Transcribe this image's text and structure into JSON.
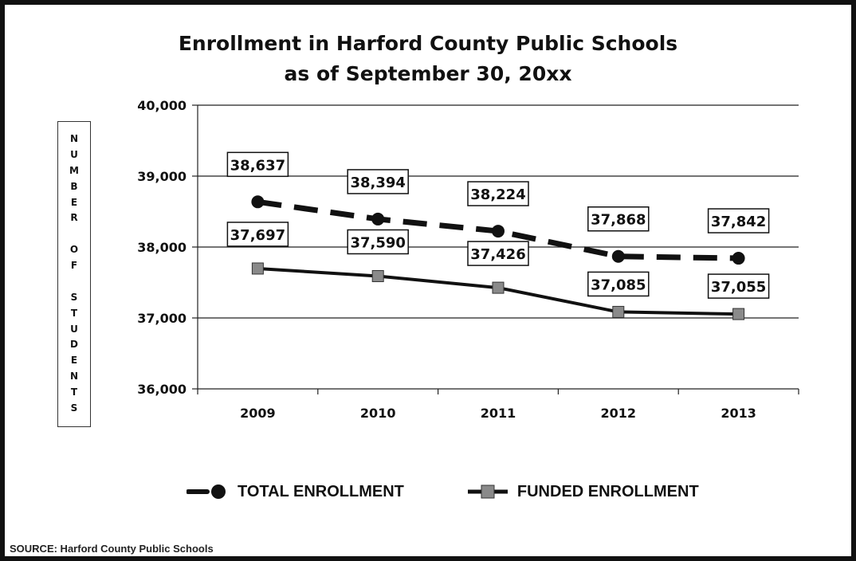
{
  "chart_data": {
    "type": "line",
    "title_lines": [
      "Enrollment in Harford County Public Schools",
      "as of September 30, 20xx"
    ],
    "ylabel_words": [
      "NUMBER",
      "OF",
      "STUDENTS"
    ],
    "xlabel": "",
    "categories": [
      "2009",
      "2010",
      "2011",
      "2012",
      "2013"
    ],
    "ylim": [
      36000,
      40000
    ],
    "yticks": [
      36000,
      37000,
      38000,
      39000,
      40000
    ],
    "ytick_labels": [
      "36,000",
      "37,000",
      "38,000",
      "39,000",
      "40,000"
    ],
    "grid": true,
    "legend_position": "bottom",
    "series": [
      {
        "name": "TOTAL ENROLLMENT",
        "values": [
          38637,
          38394,
          38224,
          37868,
          37842
        ],
        "labels": [
          "38,637",
          "38,394",
          "38,224",
          "37,868",
          "37,842"
        ],
        "line_style": "dashed",
        "marker": "circle",
        "color": "#111111"
      },
      {
        "name": "FUNDED ENROLLMENT",
        "values": [
          37697,
          37590,
          37426,
          37085,
          37055
        ],
        "labels": [
          "37,697",
          "37,590",
          "37,426",
          "37,085",
          "37,055"
        ],
        "line_style": "solid",
        "marker": "square",
        "color": "#111111",
        "marker_color": "#8a8a8a"
      }
    ]
  },
  "source_note": "SOURCE:  Harford County Public Schools"
}
